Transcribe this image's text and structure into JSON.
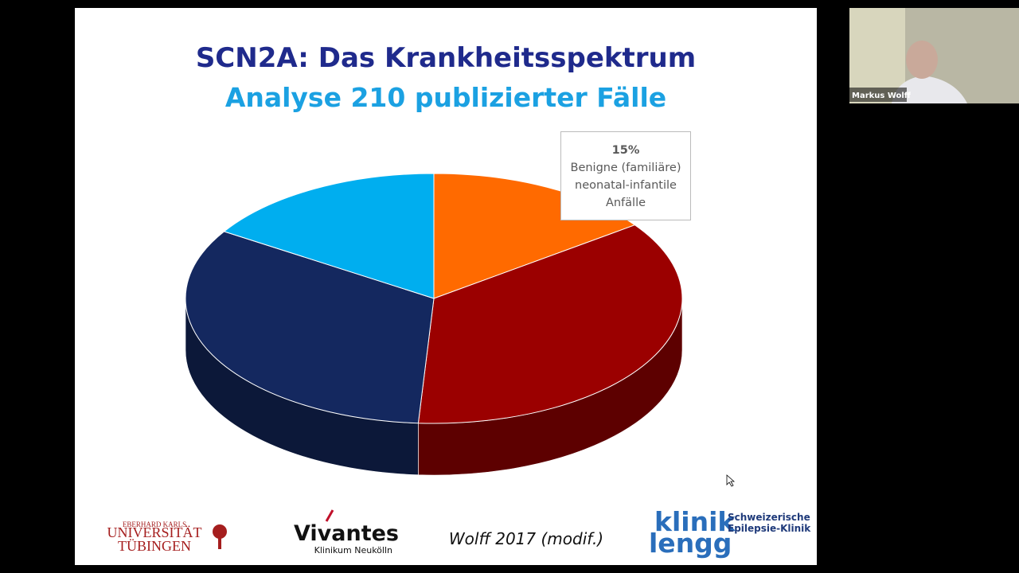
{
  "chart_data": {
    "type": "pie3d",
    "title": "SCN2A: Das Krankheitsspektrum",
    "subtitle": "Analyse 210 publizierter Fälle",
    "categories": [
      "Benigne (familiäre) neonatal-infantile Anfälle",
      null,
      null,
      null
    ],
    "values": [
      15,
      36,
      33,
      16
    ],
    "value_labels": [
      "15%",
      null,
      null,
      null
    ],
    "colors": [
      "#ff6a00",
      "#9b0000",
      "#14285f",
      "#00aeef"
    ]
  },
  "footer": {
    "citation": "Wolff 2017 (modif.)",
    "logo_tuebingen": [
      "EBERHARD KARLS",
      "UNIVERSITÄT",
      "TÜBINGEN"
    ],
    "logo_vivantes": [
      "Vivantes",
      "Klinikum Neukölln"
    ],
    "logo_lengg": [
      "klinik",
      "lengg",
      "Schweizerische",
      "Epilepsie-Klinik"
    ]
  },
  "video": {
    "participant": "Markus Wolff"
  }
}
